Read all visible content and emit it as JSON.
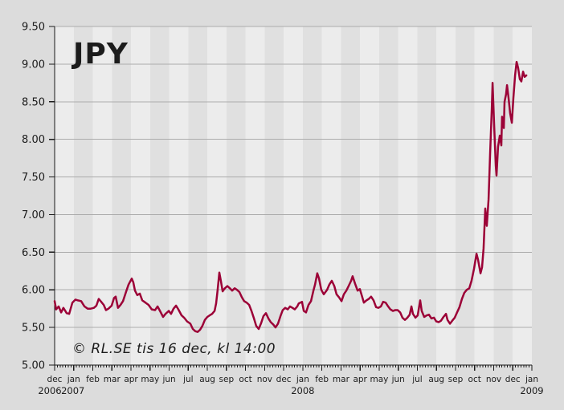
{
  "chart_data": {
    "type": "line",
    "title": "JPY",
    "watermark": "© RL.SE tis 16 dec, kl 14:00",
    "legend": false,
    "grid": true,
    "y_axis": {
      "min": 5.0,
      "max": 9.5,
      "ticks": [
        "5.00",
        "5.50",
        "6.00",
        "6.50",
        "7.00",
        "7.50",
        "8.00",
        "8.50",
        "9.00",
        "9.50"
      ]
    },
    "x_axis": {
      "months_total": 25,
      "month_labels": [
        "dec",
        "jan",
        "feb",
        "mar",
        "apr",
        "may",
        "jun",
        "jul",
        "aug",
        "sep",
        "oct",
        "nov",
        "dec",
        "jan",
        "feb",
        "mar",
        "apr",
        "may",
        "jun",
        "jul",
        "aug",
        "sep",
        "oct",
        "nov",
        "dec",
        "jan"
      ],
      "year_labels": [
        {
          "text": "2006",
          "month_index": 0
        },
        {
          "text": "2007",
          "month_index": 1
        },
        {
          "text": "2008",
          "month_index": 13
        },
        {
          "text": "2009",
          "month_index": 25
        }
      ]
    },
    "colors": {
      "line": "#9C0237",
      "grid": "#ABABAB",
      "axis": "#1a1a1a",
      "stripe_light": "#ECECEC",
      "stripe_dark": "#E0E0E0",
      "outer_bg": "#DCDCDC",
      "title": "#9A9A9A",
      "watermark": "#B1B1B1"
    },
    "series": [
      {
        "name": "JPY",
        "points": [
          [
            0.0,
            5.85
          ],
          [
            0.08,
            5.74
          ],
          [
            0.21,
            5.78
          ],
          [
            0.34,
            5.7
          ],
          [
            0.46,
            5.76
          ],
          [
            0.63,
            5.69
          ],
          [
            0.76,
            5.68
          ],
          [
            0.93,
            5.83
          ],
          [
            1.09,
            5.87
          ],
          [
            1.22,
            5.86
          ],
          [
            1.39,
            5.85
          ],
          [
            1.56,
            5.78
          ],
          [
            1.73,
            5.75
          ],
          [
            1.89,
            5.75
          ],
          [
            2.06,
            5.76
          ],
          [
            2.19,
            5.79
          ],
          [
            2.31,
            5.88
          ],
          [
            2.44,
            5.84
          ],
          [
            2.57,
            5.8
          ],
          [
            2.69,
            5.73
          ],
          [
            2.82,
            5.75
          ],
          [
            2.99,
            5.79
          ],
          [
            3.11,
            5.89
          ],
          [
            3.2,
            5.91
          ],
          [
            3.32,
            5.76
          ],
          [
            3.45,
            5.8
          ],
          [
            3.58,
            5.85
          ],
          [
            3.75,
            5.98
          ],
          [
            3.87,
            6.07
          ],
          [
            4.04,
            6.15
          ],
          [
            4.12,
            6.1
          ],
          [
            4.21,
            5.99
          ],
          [
            4.33,
            5.93
          ],
          [
            4.46,
            5.95
          ],
          [
            4.59,
            5.86
          ],
          [
            4.76,
            5.83
          ],
          [
            4.92,
            5.8
          ],
          [
            5.09,
            5.74
          ],
          [
            5.26,
            5.73
          ],
          [
            5.39,
            5.78
          ],
          [
            5.56,
            5.7
          ],
          [
            5.68,
            5.64
          ],
          [
            5.81,
            5.68
          ],
          [
            5.98,
            5.72
          ],
          [
            6.1,
            5.68
          ],
          [
            6.23,
            5.75
          ],
          [
            6.36,
            5.79
          ],
          [
            6.48,
            5.74
          ],
          [
            6.65,
            5.66
          ],
          [
            6.78,
            5.63
          ],
          [
            6.94,
            5.58
          ],
          [
            7.11,
            5.55
          ],
          [
            7.24,
            5.48
          ],
          [
            7.37,
            5.45
          ],
          [
            7.49,
            5.44
          ],
          [
            7.62,
            5.47
          ],
          [
            7.74,
            5.52
          ],
          [
            7.87,
            5.6
          ],
          [
            8.0,
            5.64
          ],
          [
            8.12,
            5.66
          ],
          [
            8.25,
            5.68
          ],
          [
            8.38,
            5.72
          ],
          [
            8.46,
            5.82
          ],
          [
            8.54,
            6.0
          ],
          [
            8.63,
            6.23
          ],
          [
            8.71,
            6.12
          ],
          [
            8.8,
            5.98
          ],
          [
            8.92,
            6.02
          ],
          [
            9.05,
            6.05
          ],
          [
            9.18,
            6.02
          ],
          [
            9.3,
            5.99
          ],
          [
            9.43,
            6.02
          ],
          [
            9.55,
            6.0
          ],
          [
            9.68,
            5.97
          ],
          [
            9.81,
            5.9
          ],
          [
            9.93,
            5.85
          ],
          [
            10.06,
            5.83
          ],
          [
            10.19,
            5.8
          ],
          [
            10.31,
            5.72
          ],
          [
            10.44,
            5.62
          ],
          [
            10.56,
            5.52
          ],
          [
            10.69,
            5.48
          ],
          [
            10.82,
            5.56
          ],
          [
            10.94,
            5.65
          ],
          [
            11.07,
            5.69
          ],
          [
            11.2,
            5.62
          ],
          [
            11.32,
            5.57
          ],
          [
            11.45,
            5.54
          ],
          [
            11.57,
            5.5
          ],
          [
            11.7,
            5.55
          ],
          [
            11.83,
            5.65
          ],
          [
            11.95,
            5.73
          ],
          [
            12.08,
            5.76
          ],
          [
            12.21,
            5.74
          ],
          [
            12.33,
            5.78
          ],
          [
            12.46,
            5.76
          ],
          [
            12.58,
            5.74
          ],
          [
            12.71,
            5.78
          ],
          [
            12.79,
            5.82
          ],
          [
            12.96,
            5.84
          ],
          [
            13.05,
            5.72
          ],
          [
            13.17,
            5.7
          ],
          [
            13.3,
            5.8
          ],
          [
            13.43,
            5.85
          ],
          [
            13.55,
            5.98
          ],
          [
            13.64,
            6.07
          ],
          [
            13.76,
            6.22
          ],
          [
            13.85,
            6.15
          ],
          [
            13.97,
            6.0
          ],
          [
            14.1,
            5.94
          ],
          [
            14.27,
            6.0
          ],
          [
            14.39,
            6.07
          ],
          [
            14.52,
            6.12
          ],
          [
            14.65,
            6.05
          ],
          [
            14.77,
            5.94
          ],
          [
            14.9,
            5.9
          ],
          [
            15.03,
            5.85
          ],
          [
            15.15,
            5.94
          ],
          [
            15.28,
            5.99
          ],
          [
            15.4,
            6.05
          ],
          [
            15.53,
            6.12
          ],
          [
            15.61,
            6.18
          ],
          [
            15.74,
            6.08
          ],
          [
            15.87,
            5.99
          ],
          [
            15.99,
            6.01
          ],
          [
            16.12,
            5.9
          ],
          [
            16.2,
            5.83
          ],
          [
            16.33,
            5.86
          ],
          [
            16.46,
            5.88
          ],
          [
            16.58,
            5.91
          ],
          [
            16.71,
            5.86
          ],
          [
            16.84,
            5.77
          ],
          [
            16.96,
            5.76
          ],
          [
            17.09,
            5.78
          ],
          [
            17.21,
            5.84
          ],
          [
            17.34,
            5.83
          ],
          [
            17.47,
            5.78
          ],
          [
            17.59,
            5.74
          ],
          [
            17.72,
            5.72
          ],
          [
            17.85,
            5.73
          ],
          [
            17.97,
            5.73
          ],
          [
            18.1,
            5.7
          ],
          [
            18.22,
            5.63
          ],
          [
            18.35,
            5.6
          ],
          [
            18.48,
            5.63
          ],
          [
            18.6,
            5.67
          ],
          [
            18.69,
            5.78
          ],
          [
            18.77,
            5.68
          ],
          [
            18.9,
            5.63
          ],
          [
            19.02,
            5.66
          ],
          [
            19.15,
            5.86
          ],
          [
            19.23,
            5.72
          ],
          [
            19.36,
            5.64
          ],
          [
            19.49,
            5.66
          ],
          [
            19.61,
            5.67
          ],
          [
            19.74,
            5.62
          ],
          [
            19.87,
            5.63
          ],
          [
            19.99,
            5.58
          ],
          [
            20.12,
            5.57
          ],
          [
            20.24,
            5.59
          ],
          [
            20.37,
            5.64
          ],
          [
            20.5,
            5.68
          ],
          [
            20.58,
            5.6
          ],
          [
            20.71,
            5.55
          ],
          [
            20.83,
            5.59
          ],
          [
            20.96,
            5.63
          ],
          [
            21.08,
            5.7
          ],
          [
            21.21,
            5.77
          ],
          [
            21.34,
            5.88
          ],
          [
            21.46,
            5.96
          ],
          [
            21.59,
            6.0
          ],
          [
            21.72,
            6.02
          ],
          [
            21.84,
            6.12
          ],
          [
            21.97,
            6.28
          ],
          [
            22.1,
            6.48
          ],
          [
            22.18,
            6.4
          ],
          [
            22.31,
            6.22
          ],
          [
            22.39,
            6.3
          ],
          [
            22.47,
            6.55
          ],
          [
            22.56,
            7.08
          ],
          [
            22.64,
            6.85
          ],
          [
            22.73,
            7.2
          ],
          [
            22.81,
            7.8
          ],
          [
            22.9,
            8.4
          ],
          [
            22.94,
            8.75
          ],
          [
            23.02,
            8.2
          ],
          [
            23.11,
            7.65
          ],
          [
            23.15,
            7.52
          ],
          [
            23.23,
            7.9
          ],
          [
            23.32,
            8.05
          ],
          [
            23.4,
            7.92
          ],
          [
            23.44,
            8.3
          ],
          [
            23.53,
            8.15
          ],
          [
            23.57,
            8.5
          ],
          [
            23.65,
            8.6
          ],
          [
            23.7,
            8.72
          ],
          [
            23.78,
            8.55
          ],
          [
            23.86,
            8.35
          ],
          [
            23.95,
            8.22
          ],
          [
            24.03,
            8.55
          ],
          [
            24.12,
            8.85
          ],
          [
            24.2,
            9.03
          ],
          [
            24.28,
            8.95
          ],
          [
            24.37,
            8.8
          ],
          [
            24.45,
            8.77
          ],
          [
            24.54,
            8.9
          ],
          [
            24.62,
            8.83
          ],
          [
            24.71,
            8.85
          ]
        ]
      }
    ]
  }
}
